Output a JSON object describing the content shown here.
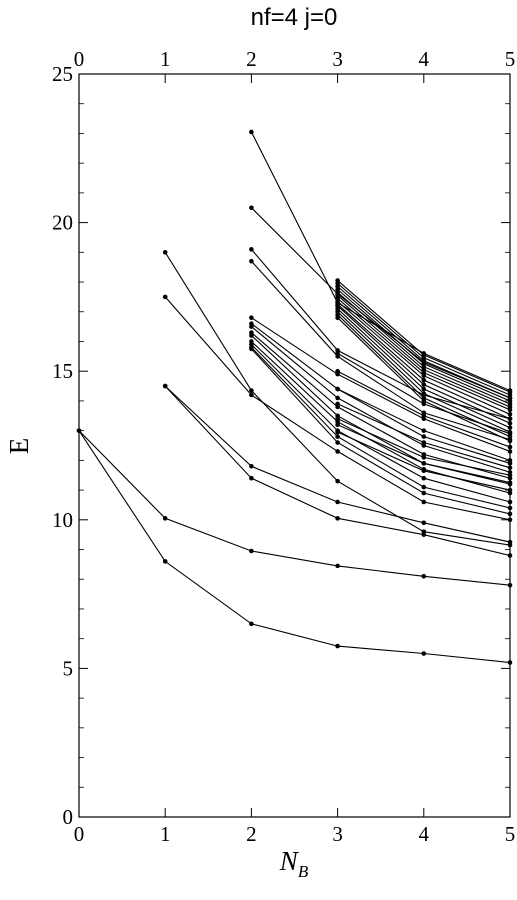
{
  "chart_data": {
    "type": "line",
    "title": "nf=4   j=0",
    "xlabel": "N",
    "xlabel_sub": "B",
    "ylabel": "E",
    "xlim": [
      0,
      5
    ],
    "ylim": [
      0,
      25
    ],
    "x_ticks": [
      "0",
      "1",
      "2",
      "3",
      "4",
      "5"
    ],
    "y_ticks": [
      "0",
      "5",
      "10",
      "15",
      "20",
      "25"
    ],
    "grid": false,
    "legend": "none",
    "marker": "dot",
    "series": [
      {
        "x": [
          0,
          1,
          2,
          3,
          4,
          5
        ],
        "values": [
          13.0,
          8.6,
          6.5,
          5.75,
          5.5,
          5.2
        ]
      },
      {
        "x": [
          0,
          1,
          2,
          3,
          4,
          5
        ],
        "values": [
          13.0,
          10.05,
          8.95,
          8.45,
          8.1,
          7.8
        ]
      },
      {
        "x": [
          1,
          2,
          3,
          4,
          5
        ],
        "values": [
          14.5,
          11.8,
          10.6,
          9.9,
          9.25
        ]
      },
      {
        "x": [
          1,
          2,
          3,
          4,
          5
        ],
        "values": [
          14.5,
          11.4,
          10.05,
          9.5,
          8.8
        ]
      },
      {
        "x": [
          1,
          2,
          3,
          4,
          5
        ],
        "values": [
          17.5,
          14.2,
          12.3,
          10.6,
          10.0
        ]
      },
      {
        "x": [
          1,
          2,
          3,
          4,
          5
        ],
        "values": [
          19.0,
          14.35,
          11.3,
          9.6,
          9.15
        ]
      },
      {
        "x": [
          2,
          3,
          4,
          5
        ],
        "values": [
          23.05,
          17.3,
          15.6,
          14.35
        ]
      },
      {
        "x": [
          2,
          3,
          4,
          5
        ],
        "values": [
          20.5,
          17.6,
          15.3,
          14.1
        ]
      },
      {
        "x": [
          2,
          3,
          4,
          5
        ],
        "values": [
          19.1,
          15.7,
          14.2,
          13.4
        ]
      },
      {
        "x": [
          2,
          3,
          4,
          5
        ],
        "values": [
          18.7,
          15.5,
          13.6,
          12.7
        ]
      },
      {
        "x": [
          2,
          3,
          4,
          5
        ],
        "values": [
          16.8,
          14.9,
          13.4,
          12.3
        ]
      },
      {
        "x": [
          2,
          3,
          4,
          5
        ],
        "values": [
          16.6,
          14.4,
          12.8,
          11.9
        ]
      },
      {
        "x": [
          2,
          3,
          4,
          5
        ],
        "values": [
          16.5,
          14.1,
          12.5,
          11.6
        ]
      },
      {
        "x": [
          2,
          3,
          4,
          5
        ],
        "values": [
          16.3,
          13.8,
          12.2,
          11.4
        ]
      },
      {
        "x": [
          2,
          3,
          4,
          5
        ],
        "values": [
          16.2,
          13.5,
          11.9,
          11.2
        ]
      },
      {
        "x": [
          2,
          3,
          4,
          5
        ],
        "values": [
          16.0,
          13.3,
          11.7,
          10.9
        ]
      },
      {
        "x": [
          2,
          3,
          4,
          5
        ],
        "values": [
          15.9,
          13.0,
          11.4,
          10.6
        ]
      },
      {
        "x": [
          2,
          3,
          4,
          5
        ],
        "values": [
          15.8,
          12.8,
          11.1,
          10.4
        ]
      },
      {
        "x": [
          2,
          3,
          4,
          5
        ],
        "values": [
          15.75,
          12.6,
          10.9,
          10.2
        ]
      },
      {
        "x": [
          3,
          4,
          5
        ],
        "values": [
          18.05,
          15.55,
          14.3
        ]
      },
      {
        "x": [
          3,
          4,
          5
        ],
        "values": [
          17.95,
          15.45,
          14.2
        ]
      },
      {
        "x": [
          3,
          4,
          5
        ],
        "values": [
          17.85,
          15.35,
          14.1
        ]
      },
      {
        "x": [
          3,
          4,
          5
        ],
        "values": [
          17.75,
          15.25,
          14.0
        ]
      },
      {
        "x": [
          3,
          4,
          5
        ],
        "values": [
          17.65,
          15.15,
          13.9
        ]
      },
      {
        "x": [
          3,
          4,
          5
        ],
        "values": [
          17.55,
          15.05,
          13.8
        ]
      },
      {
        "x": [
          3,
          4,
          5
        ],
        "values": [
          17.45,
          14.95,
          13.7
        ]
      },
      {
        "x": [
          3,
          4,
          5
        ],
        "values": [
          17.35,
          14.85,
          13.55
        ]
      },
      {
        "x": [
          3,
          4,
          5
        ],
        "values": [
          17.25,
          14.7,
          13.4
        ]
      },
      {
        "x": [
          3,
          4,
          5
        ],
        "values": [
          17.2,
          14.55,
          13.25
        ]
      },
      {
        "x": [
          3,
          4,
          5
        ],
        "values": [
          17.1,
          14.4,
          13.1
        ]
      },
      {
        "x": [
          3,
          4,
          5
        ],
        "values": [
          17.0,
          14.25,
          12.95
        ]
      },
      {
        "x": [
          3,
          4,
          5
        ],
        "values": [
          16.9,
          14.1,
          12.8
        ]
      },
      {
        "x": [
          3,
          4,
          5
        ],
        "values": [
          16.8,
          14.0,
          12.65
        ]
      },
      {
        "x": [
          3,
          4,
          5
        ],
        "values": [
          15.6,
          13.9,
          12.9
        ]
      },
      {
        "x": [
          3,
          4,
          5
        ],
        "values": [
          15.0,
          13.5,
          12.45
        ]
      },
      {
        "x": [
          3,
          4,
          5
        ],
        "values": [
          14.4,
          13.0,
          12.0
        ]
      },
      {
        "x": [
          3,
          4,
          5
        ],
        "values": [
          13.9,
          12.6,
          11.75
        ]
      },
      {
        "x": [
          3,
          4,
          5
        ],
        "values": [
          13.4,
          12.1,
          11.5
        ]
      },
      {
        "x": [
          3,
          4,
          5
        ],
        "values": [
          13.2,
          11.9,
          11.25
        ]
      },
      {
        "x": [
          3,
          4,
          5
        ],
        "values": [
          12.95,
          11.65,
          11.0
        ]
      }
    ]
  }
}
